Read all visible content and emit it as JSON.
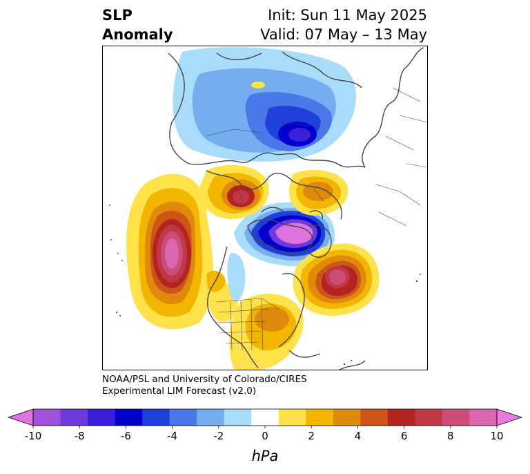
{
  "title": {
    "left_line1": "SLP",
    "left_line2": "Anomaly",
    "right_line1": "Init: Sun 11 May 2025",
    "right_line2": "Valid: 07 May – 13 May"
  },
  "credit": {
    "line1": "NOAA/PSL and University of Colorado/CIRES",
    "line2": "Experimental LIM Forecast (v2.0)"
  },
  "colorbar": {
    "unit": "hPa",
    "tick_labels": [
      "-10",
      "-8",
      "-6",
      "-4",
      "-2",
      "0",
      "2",
      "4",
      "6",
      "8",
      "10"
    ],
    "min": -10,
    "max": 10,
    "extend": "both",
    "colors": [
      "#dd73dd",
      "#a152dc",
      "#6e3adc",
      "#3a1fd8",
      "#0000cd",
      "#2040dc",
      "#4a78e8",
      "#74aef0",
      "#a8dcfa",
      "#ffffff",
      "#ffe14a",
      "#f2b600",
      "#df8a0c",
      "#cd5518",
      "#b4231f",
      "#c03848",
      "#cc4e78",
      "#da66b0",
      "#e97ade"
    ]
  },
  "map": {
    "projection": "north-polar-stereographic",
    "field": "SLP anomaly",
    "anomaly_centers": [
      {
        "region": "central Siberia",
        "sign": "negative",
        "peak_hPa": -6
      },
      {
        "region": "Arctic / Greenland",
        "sign": "negative",
        "peak_hPa": -10
      },
      {
        "region": "North Pacific",
        "sign": "positive",
        "peak_hPa": 10
      },
      {
        "region": "North Atlantic",
        "sign": "positive",
        "peak_hPa": 8
      },
      {
        "region": "Scandinavia",
        "sign": "positive",
        "peak_hPa": 6
      },
      {
        "region": "Europe",
        "sign": "positive",
        "peak_hPa": 4
      },
      {
        "region": "eastern North America",
        "sign": "positive",
        "peak_hPa": 4
      }
    ]
  }
}
